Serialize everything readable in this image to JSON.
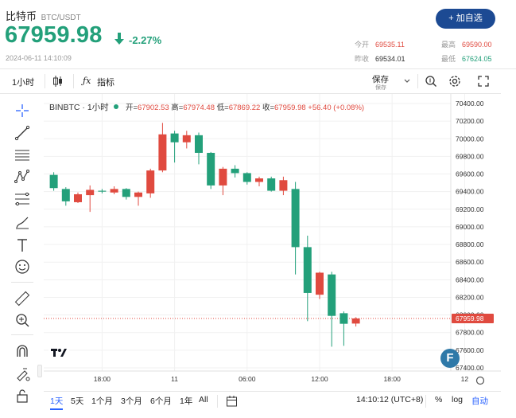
{
  "header": {
    "title": "比特币",
    "pair": "BTC/USDT",
    "price": "67959.98",
    "change": "-2.27%",
    "datetime": "2024-06-11 14:10:09",
    "add_button": "+ 加自选",
    "stats": {
      "open_label": "今开",
      "open_value": "69535.11",
      "prev_label": "昨收",
      "prev_value": "69534.01",
      "high_label": "最高",
      "high_value": "69590.00",
      "low_label": "最低",
      "low_value": "67624.05"
    }
  },
  "toolbar": {
    "interval": "1小时",
    "indicators": "指标",
    "save_top": "保存",
    "save_bottom": "保存"
  },
  "legend": {
    "symbol": "BINBTC · 1小时",
    "open_label": "开=",
    "open": "67902.53",
    "high_label": "高=",
    "high": "67974.48",
    "low_label": "低=",
    "low": "67869.22",
    "close_label": "收=",
    "close": "67959.98",
    "change": "+56.40 (+0.08%)"
  },
  "badge": "F",
  "bottom_bar": {
    "ranges": [
      "1天",
      "5天",
      "1个月",
      "3个月",
      "6个月",
      "1年",
      "All"
    ],
    "active_range": "1天",
    "time": "14:10:12 (UTC+8)",
    "percent": "%",
    "log": "log",
    "auto": "自动"
  },
  "colors": {
    "up": "#e04a3f",
    "down": "#23a07a",
    "accent": "#1c4a93",
    "price_tag": "#e04a3f"
  },
  "chart_data": {
    "type": "candlestick",
    "y_axis": [
      "70400.00",
      "70200.00",
      "70000.00",
      "69800.00",
      "69600.00",
      "69400.00",
      "69200.00",
      "69000.00",
      "68800.00",
      "68600.00",
      "68400.00",
      "68200.00",
      "68000.00",
      "67800.00",
      "67600.00",
      "67400.00"
    ],
    "ylim": [
      67400,
      70400
    ],
    "x_ticks": [
      {
        "label": "18:00",
        "index": 4
      },
      {
        "label": "11",
        "index": 10
      },
      {
        "label": "06:00",
        "index": 16
      },
      {
        "label": "12:00",
        "index": 22
      },
      {
        "label": "18:00",
        "index": 28
      },
      {
        "label": "12",
        "index": 34
      }
    ],
    "current_price_label": "67959.98",
    "candles": [
      {
        "o": 69590,
        "h": 69620,
        "l": 69410,
        "c": 69440
      },
      {
        "o": 69430,
        "h": 69450,
        "l": 69240,
        "c": 69290
      },
      {
        "o": 69280,
        "h": 69390,
        "l": 69270,
        "c": 69370
      },
      {
        "o": 69360,
        "h": 69470,
        "l": 69170,
        "c": 69420
      },
      {
        "o": 69410,
        "h": 69430,
        "l": 69380,
        "c": 69400
      },
      {
        "o": 69390,
        "h": 69460,
        "l": 69370,
        "c": 69430
      },
      {
        "o": 69430,
        "h": 69440,
        "l": 69310,
        "c": 69340
      },
      {
        "o": 69340,
        "h": 69400,
        "l": 69240,
        "c": 69390
      },
      {
        "o": 69380,
        "h": 69660,
        "l": 69330,
        "c": 69640
      },
      {
        "o": 69640,
        "h": 70180,
        "l": 69620,
        "c": 70050
      },
      {
        "o": 70060,
        "h": 70090,
        "l": 69730,
        "c": 69960
      },
      {
        "o": 69960,
        "h": 70090,
        "l": 69890,
        "c": 70040
      },
      {
        "o": 70040,
        "h": 70070,
        "l": 69710,
        "c": 69840
      },
      {
        "o": 69840,
        "h": 69850,
        "l": 69430,
        "c": 69470
      },
      {
        "o": 69470,
        "h": 69680,
        "l": 69360,
        "c": 69660
      },
      {
        "o": 69660,
        "h": 69700,
        "l": 69560,
        "c": 69610
      },
      {
        "o": 69610,
        "h": 69620,
        "l": 69480,
        "c": 69510
      },
      {
        "o": 69510,
        "h": 69570,
        "l": 69460,
        "c": 69550
      },
      {
        "o": 69550,
        "h": 69570,
        "l": 69400,
        "c": 69410
      },
      {
        "o": 69410,
        "h": 69570,
        "l": 69360,
        "c": 69530
      },
      {
        "o": 69430,
        "h": 69510,
        "l": 68460,
        "c": 68770
      },
      {
        "o": 68770,
        "h": 68900,
        "l": 67930,
        "c": 68250
      },
      {
        "o": 68230,
        "h": 68490,
        "l": 68180,
        "c": 68480
      },
      {
        "o": 68460,
        "h": 68490,
        "l": 67640,
        "c": 67990
      },
      {
        "o": 68020,
        "h": 68040,
        "l": 67650,
        "c": 67900
      },
      {
        "o": 67902.53,
        "h": 67974.48,
        "l": 67869.22,
        "c": 67959.98
      }
    ],
    "candle_slots": [
      0,
      1,
      2,
      3,
      4,
      5,
      6,
      7,
      8,
      9,
      10,
      11,
      12,
      13,
      14,
      15,
      16,
      17,
      18,
      19,
      20,
      21,
      22,
      23,
      24,
      25
    ]
  }
}
